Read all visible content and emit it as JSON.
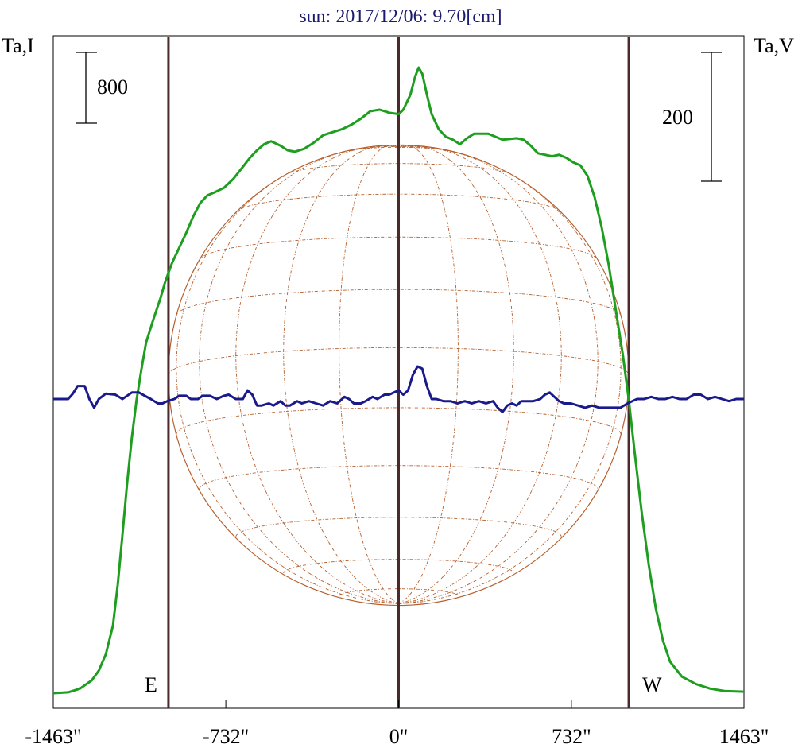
{
  "chart_data": {
    "type": "line",
    "title": "sun: 2017/12/06: 9.70[cm]",
    "left_axis_label": "Ta,I",
    "right_axis_label": "Ta,V",
    "x_unit": "arcsec",
    "xlim": [
      -1463,
      1463
    ],
    "x_ticks": [
      -1463,
      -732,
      0,
      732,
      1463
    ],
    "x_tick_labels": [
      "-1463\"",
      "-732\"",
      "0\"",
      "732\"",
      "1463\""
    ],
    "vertical_markers": [
      -975,
      0,
      975
    ],
    "limb_labels": {
      "east": "E",
      "west": "W"
    },
    "solar_radius": 975,
    "scale_bars": {
      "left": "800",
      "right": "200"
    },
    "series": [
      {
        "key": "I",
        "color": "#1e9e1e",
        "points": [
          [
            -1463,
            0
          ],
          [
            -1400,
            6
          ],
          [
            -1350,
            30
          ],
          [
            -1300,
            85
          ],
          [
            -1270,
            150
          ],
          [
            -1240,
            260
          ],
          [
            -1210,
            450
          ],
          [
            -1190,
            720
          ],
          [
            -1170,
            1050
          ],
          [
            -1150,
            1400
          ],
          [
            -1130,
            1700
          ],
          [
            -1110,
            1950
          ],
          [
            -1090,
            2150
          ],
          [
            -1070,
            2330
          ],
          [
            -1040,
            2480
          ],
          [
            -1010,
            2620
          ],
          [
            -990,
            2730
          ],
          [
            -960,
            2860
          ],
          [
            -930,
            2960
          ],
          [
            -900,
            3060
          ],
          [
            -870,
            3170
          ],
          [
            -840,
            3260
          ],
          [
            -810,
            3310
          ],
          [
            -780,
            3330
          ],
          [
            -740,
            3360
          ],
          [
            -700,
            3420
          ],
          [
            -660,
            3500
          ],
          [
            -630,
            3560
          ],
          [
            -600,
            3610
          ],
          [
            -570,
            3650
          ],
          [
            -540,
            3670
          ],
          [
            -500,
            3640
          ],
          [
            -470,
            3610
          ],
          [
            -440,
            3600
          ],
          [
            -400,
            3620
          ],
          [
            -360,
            3660
          ],
          [
            -320,
            3710
          ],
          [
            -280,
            3730
          ],
          [
            -240,
            3750
          ],
          [
            -200,
            3780
          ],
          [
            -160,
            3820
          ],
          [
            -120,
            3870
          ],
          [
            -80,
            3880
          ],
          [
            -40,
            3860
          ],
          [
            0,
            3850
          ],
          [
            20,
            3880
          ],
          [
            50,
            3980
          ],
          [
            70,
            4100
          ],
          [
            85,
            4160
          ],
          [
            100,
            4120
          ],
          [
            120,
            3980
          ],
          [
            140,
            3850
          ],
          [
            170,
            3750
          ],
          [
            200,
            3700
          ],
          [
            230,
            3680
          ],
          [
            260,
            3650
          ],
          [
            290,
            3690
          ],
          [
            320,
            3720
          ],
          [
            350,
            3720
          ],
          [
            380,
            3720
          ],
          [
            410,
            3700
          ],
          [
            440,
            3680
          ],
          [
            470,
            3685
          ],
          [
            500,
            3690
          ],
          [
            530,
            3680
          ],
          [
            560,
            3640
          ],
          [
            590,
            3590
          ],
          [
            620,
            3580
          ],
          [
            650,
            3570
          ],
          [
            680,
            3580
          ],
          [
            710,
            3560
          ],
          [
            740,
            3530
          ],
          [
            770,
            3510
          ],
          [
            800,
            3440
          ],
          [
            830,
            3300
          ],
          [
            860,
            3100
          ],
          [
            890,
            2850
          ],
          [
            920,
            2550
          ],
          [
            950,
            2250
          ],
          [
            975,
            1950
          ],
          [
            1000,
            1600
          ],
          [
            1030,
            1200
          ],
          [
            1060,
            850
          ],
          [
            1090,
            560
          ],
          [
            1120,
            350
          ],
          [
            1150,
            210
          ],
          [
            1200,
            110
          ],
          [
            1260,
            60
          ],
          [
            1320,
            30
          ],
          [
            1380,
            15
          ],
          [
            1463,
            10
          ]
        ]
      },
      {
        "key": "V",
        "color": "#1a1a8c",
        "points": [
          [
            -1463,
            0
          ],
          [
            -1400,
            0
          ],
          [
            -1380,
            5
          ],
          [
            -1360,
            12
          ],
          [
            -1330,
            12
          ],
          [
            -1310,
            0
          ],
          [
            -1290,
            -8
          ],
          [
            -1270,
            0
          ],
          [
            -1240,
            5
          ],
          [
            -1200,
            4
          ],
          [
            -1170,
            0
          ],
          [
            -1130,
            6
          ],
          [
            -1100,
            6
          ],
          [
            -1075,
            3
          ],
          [
            -1050,
            0
          ],
          [
            -1020,
            -4
          ],
          [
            -1000,
            -4
          ],
          [
            -980,
            -2
          ],
          [
            -950,
            0
          ],
          [
            -930,
            3
          ],
          [
            -900,
            3
          ],
          [
            -880,
            0
          ],
          [
            -850,
            0
          ],
          [
            -830,
            3
          ],
          [
            -800,
            3
          ],
          [
            -770,
            0
          ],
          [
            -740,
            3
          ],
          [
            -720,
            4
          ],
          [
            -690,
            0
          ],
          [
            -660,
            0
          ],
          [
            -640,
            8
          ],
          [
            -620,
            4
          ],
          [
            -600,
            -6
          ],
          [
            -580,
            -6
          ],
          [
            -550,
            -4
          ],
          [
            -530,
            -6
          ],
          [
            -500,
            -2
          ],
          [
            -480,
            -6
          ],
          [
            -460,
            -6
          ],
          [
            -430,
            -2
          ],
          [
            -410,
            -4
          ],
          [
            -380,
            -2
          ],
          [
            -350,
            -4
          ],
          [
            -320,
            -6
          ],
          [
            -290,
            -2
          ],
          [
            -260,
            -4
          ],
          [
            -230,
            2
          ],
          [
            -210,
            0
          ],
          [
            -190,
            -4
          ],
          [
            -160,
            -4
          ],
          [
            -140,
            -2
          ],
          [
            -110,
            2
          ],
          [
            -90,
            0
          ],
          [
            -60,
            4
          ],
          [
            -40,
            4
          ],
          [
            -20,
            6
          ],
          [
            0,
            8
          ],
          [
            20,
            4
          ],
          [
            40,
            8
          ],
          [
            60,
            22
          ],
          [
            80,
            30
          ],
          [
            100,
            28
          ],
          [
            120,
            12
          ],
          [
            140,
            0
          ],
          [
            160,
            0
          ],
          [
            190,
            -2
          ],
          [
            220,
            -2
          ],
          [
            250,
            -4
          ],
          [
            280,
            -2
          ],
          [
            310,
            -4
          ],
          [
            340,
            -2
          ],
          [
            370,
            -4
          ],
          [
            400,
            -2
          ],
          [
            420,
            -8
          ],
          [
            440,
            -12
          ],
          [
            460,
            -6
          ],
          [
            480,
            -4
          ],
          [
            500,
            -6
          ],
          [
            520,
            -2
          ],
          [
            540,
            -2
          ],
          [
            570,
            -2
          ],
          [
            600,
            0
          ],
          [
            620,
            4
          ],
          [
            640,
            6
          ],
          [
            660,
            2
          ],
          [
            680,
            -2
          ],
          [
            700,
            -4
          ],
          [
            730,
            -4
          ],
          [
            760,
            -6
          ],
          [
            790,
            -8
          ],
          [
            820,
            -6
          ],
          [
            850,
            -8
          ],
          [
            880,
            -8
          ],
          [
            910,
            -8
          ],
          [
            940,
            -8
          ],
          [
            970,
            -4
          ],
          [
            990,
            -2
          ],
          [
            1010,
            0
          ],
          [
            1040,
            0
          ],
          [
            1070,
            2
          ],
          [
            1100,
            0
          ],
          [
            1130,
            0
          ],
          [
            1160,
            2
          ],
          [
            1190,
            0
          ],
          [
            1220,
            0
          ],
          [
            1250,
            4
          ],
          [
            1280,
            4
          ],
          [
            1310,
            0
          ],
          [
            1340,
            2
          ],
          [
            1370,
            0
          ],
          [
            1400,
            -2
          ],
          [
            1430,
            0
          ],
          [
            1463,
            0
          ]
        ]
      }
    ],
    "grid": false
  }
}
